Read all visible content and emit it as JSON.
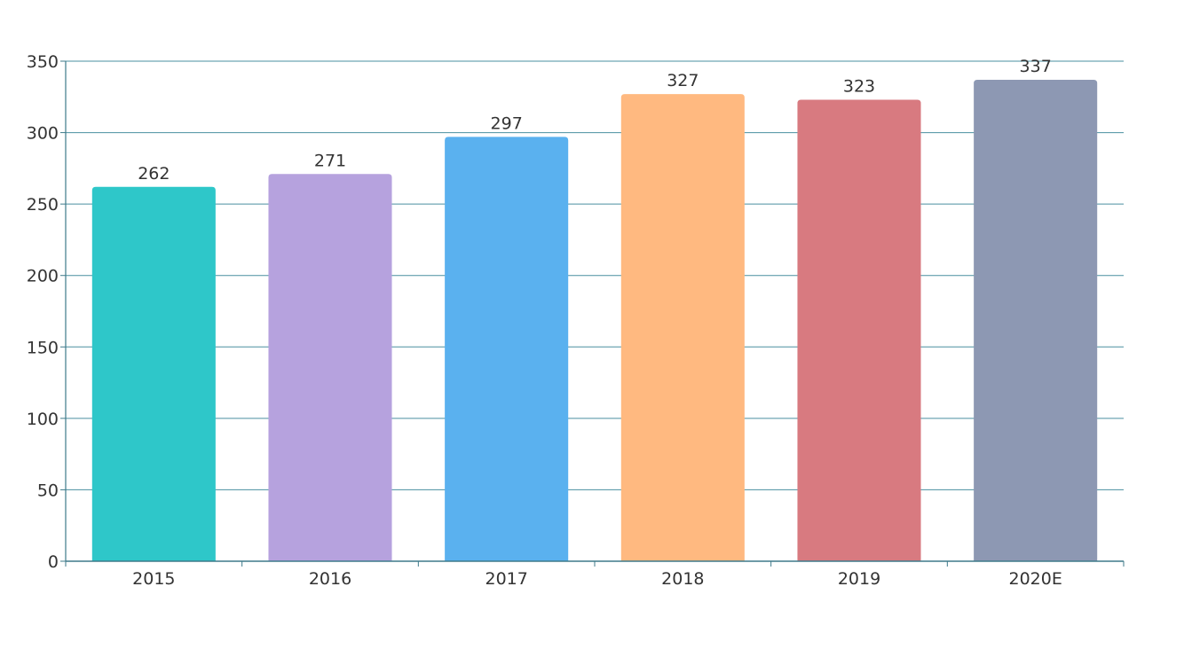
{
  "chart_data": {
    "type": "bar",
    "categories": [
      "2015",
      "2016",
      "2017",
      "2018",
      "2019",
      "2020E"
    ],
    "values": [
      262,
      271,
      297,
      327,
      323,
      337
    ],
    "data_labels": [
      "262",
      "271",
      "297",
      "327",
      "323",
      "337"
    ],
    "colors": [
      "#2ec7c9",
      "#b6a2de",
      "#5ab1ef",
      "#ffb980",
      "#d87a80",
      "#8d98b3"
    ],
    "title": "",
    "xlabel": "",
    "ylabel": "",
    "ylim": [
      0,
      350
    ],
    "yticks": [
      0,
      50,
      100,
      150,
      200,
      250,
      300,
      350
    ],
    "ytick_labels": [
      "0",
      "50",
      "100",
      "150",
      "200",
      "250",
      "300",
      "350"
    ],
    "grid": true,
    "legend": "none"
  },
  "style": {
    "axis_color": "#3e7a8a",
    "grid_color": "#4a8fa0",
    "text_color": "#333333"
  }
}
